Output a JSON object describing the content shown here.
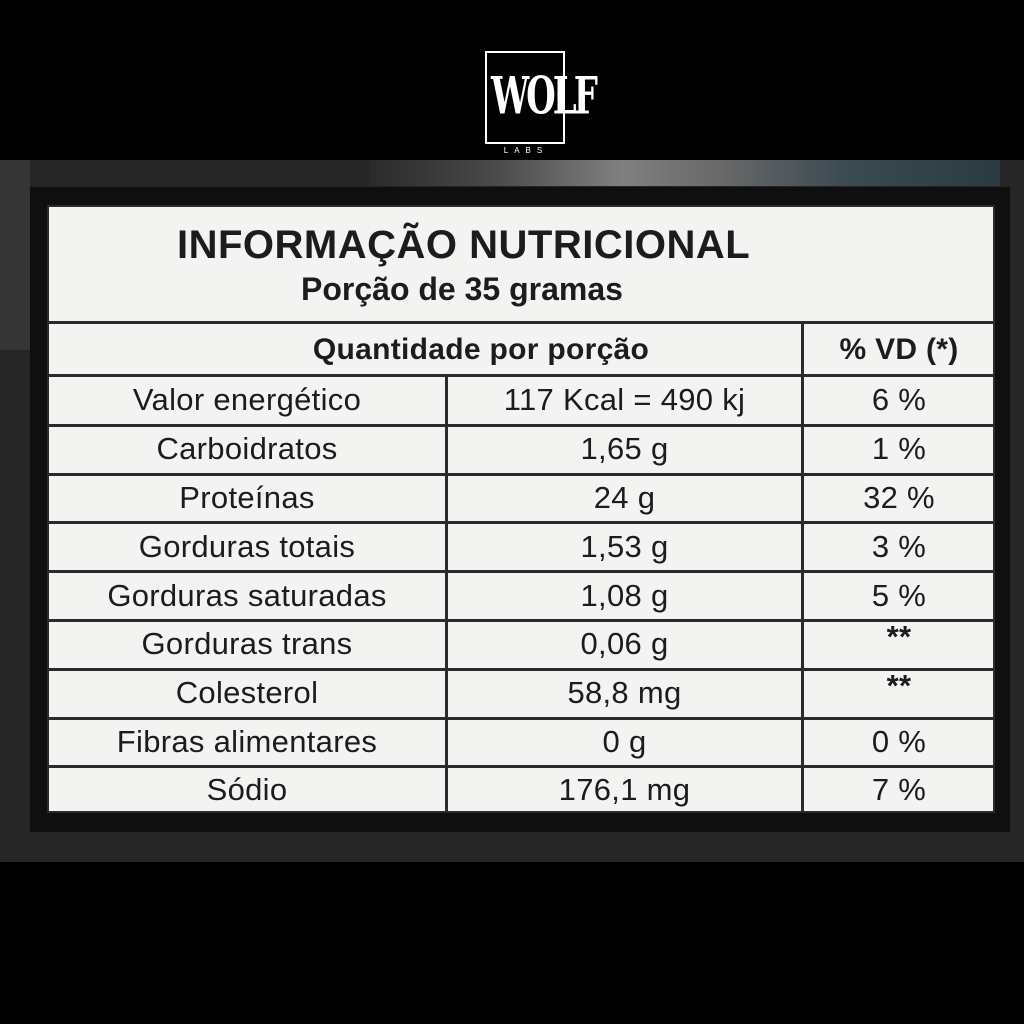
{
  "brand": {
    "logo_word": "WOLF",
    "logo_sub": "LABS"
  },
  "panel": {
    "title": "INFORMAÇÃO NUTRICIONAL",
    "subtitle": "Porção de 35 gramas",
    "header_quantity": "Quantidade por porção",
    "header_vd": "% VD (*)",
    "rows": [
      {
        "name": "Valor energético",
        "amount": "117 Kcal = 490 kj",
        "vd": "6 %"
      },
      {
        "name": "Carboidratos",
        "amount": "1,65 g",
        "vd": "1 %"
      },
      {
        "name": "Proteínas",
        "amount": "24 g",
        "vd": "32 %"
      },
      {
        "name": "Gorduras totais",
        "amount": "1,53 g",
        "vd": "3 %"
      },
      {
        "name": "Gorduras saturadas",
        "amount": "1,08 g",
        "vd": "5 %"
      },
      {
        "name": "Gorduras trans",
        "amount": "0,06 g",
        "vd": "**"
      },
      {
        "name": "Colesterol",
        "amount": "58,8 mg",
        "vd": "**"
      },
      {
        "name": "Fibras alimentares",
        "amount": "0 g",
        "vd": "0 %"
      },
      {
        "name": "Sódio",
        "amount": "176,1 mg",
        "vd": "7 %"
      }
    ]
  },
  "colors": {
    "background": "#000000",
    "panel": "#f3f3f1",
    "ink": "#1c1c1c"
  }
}
